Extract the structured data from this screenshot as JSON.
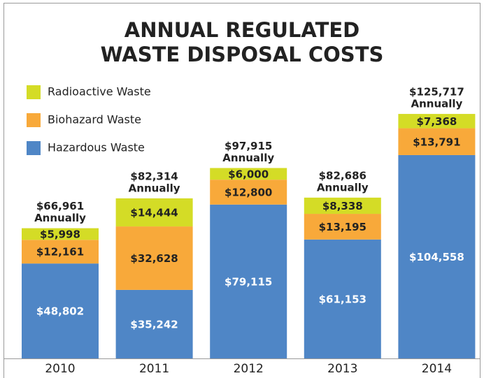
{
  "chart_data": {
    "type": "stacked_bar",
    "title": [
      "ANNUAL REGULATED",
      "WASTE DISPOSAL COSTS"
    ],
    "categories": [
      "2010",
      "2011",
      "2012",
      "2013",
      "2014"
    ],
    "series": [
      {
        "name": "Hazardous Waste",
        "color": "#4f86c6",
        "values": [
          48802,
          35242,
          79115,
          61153,
          104558
        ],
        "value_labels": [
          "$48,802",
          "$35,242",
          "$79,115",
          "$61,153",
          "$104,558"
        ]
      },
      {
        "name": "Biohazard Waste",
        "color": "#f8a93a",
        "values": [
          12161,
          32628,
          12800,
          13195,
          13791
        ],
        "value_labels": [
          "$12,161",
          "$32,628",
          "$12,800",
          "$13,195",
          "$13,791"
        ]
      },
      {
        "name": "Radioactive Waste",
        "color": "#d4dc26",
        "values": [
          5998,
          14444,
          6000,
          8338,
          7368
        ],
        "value_labels": [
          "$5,998",
          "$14,444",
          "$6,000",
          "$8,338",
          "$7,368"
        ]
      }
    ],
    "total_labels": [
      "$66,961",
      "$82,314",
      "$97,915",
      "$82,686",
      "$125,717"
    ],
    "total_note": "Annually",
    "ylim": [
      0,
      182500
    ],
    "legend": "upper left"
  }
}
